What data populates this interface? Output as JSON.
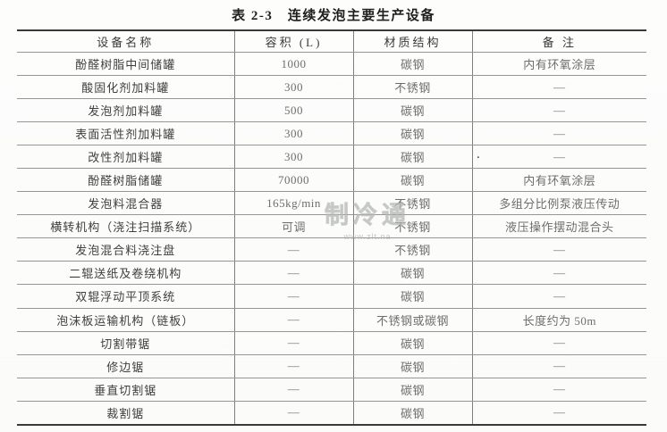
{
  "title": "表 2-3　连续发泡主要生产设备",
  "watermark": {
    "text": "制冷通",
    "url": "www.zlt.na"
  },
  "stray_dot": ".",
  "table": {
    "headers": [
      "设备名称",
      "容积 (L)",
      "材质结构",
      "备 注"
    ],
    "rows": [
      {
        "name": "酚醛树脂中间储罐",
        "volume": "1000",
        "material": "碳钢",
        "remark": "内有环氧涂层"
      },
      {
        "name": "酸固化剂加料罐",
        "volume": "300",
        "material": "不锈钢",
        "remark": "—"
      },
      {
        "name": "发泡剂加料罐",
        "volume": "500",
        "material": "碳钢",
        "remark": "—"
      },
      {
        "name": "表面活性剂加料罐",
        "volume": "300",
        "material": "碳钢",
        "remark": "—"
      },
      {
        "name": "改性剂加料罐",
        "volume": "300",
        "material": "碳钢",
        "remark": "—"
      },
      {
        "name": "酚醛树脂储罐",
        "volume": "70000",
        "material": "碳钢",
        "remark": "内有环氧涂层"
      },
      {
        "name": "发泡料混合器",
        "volume": "165kg/min",
        "material": "不锈钢",
        "remark": "多组分比例泵液压传动"
      },
      {
        "name": "横转机构（浇注扫描系统）",
        "volume": "可调",
        "material": "不锈钢",
        "remark": "液压操作摆动混合头"
      },
      {
        "name": "发泡混合料浇注盘",
        "volume": "—",
        "material": "不锈钢",
        "remark": "—"
      },
      {
        "name": "二辊送纸及卷绕机构",
        "volume": "—",
        "material": "碳钢",
        "remark": "—"
      },
      {
        "name": "双辊浮动平顶系统",
        "volume": "—",
        "material": "碳钢",
        "remark": "—"
      },
      {
        "name": "泡沫板运输机构（链板）",
        "volume": "—",
        "material": "不锈钢或碳钢",
        "remark": "长度约为 50m"
      },
      {
        "name": "切割带锯",
        "volume": "—",
        "material": "碳钢",
        "remark": "—"
      },
      {
        "name": "修边锯",
        "volume": "—",
        "material": "碳钢",
        "remark": "—"
      },
      {
        "name": "垂直切割锯",
        "volume": "—",
        "material": "碳钢",
        "remark": "—"
      },
      {
        "name": "裁割锯",
        "volume": "—",
        "material": "碳钢",
        "remark": "—"
      }
    ]
  },
  "colors": {
    "rule_heavy": "#3a3a3a",
    "rule_light": "#979792",
    "text": "#3f3f3d",
    "watermark": "#babdbb",
    "background": "#fcfcfb"
  }
}
